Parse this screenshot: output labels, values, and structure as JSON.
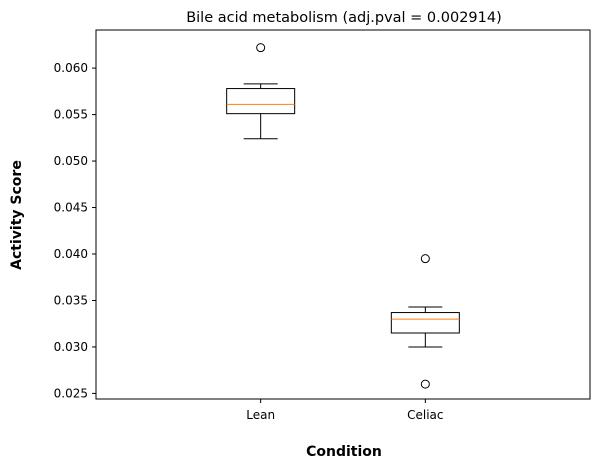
{
  "chart_data": {
    "type": "box",
    "title": "Bile acid metabolism (adj.pval = 0.002914)",
    "xlabel": "Condition",
    "ylabel": "Activity Score",
    "ylim": [
      0.0244,
      0.0641
    ],
    "yticks": [
      0.025,
      0.03,
      0.035,
      0.04,
      0.045,
      0.05,
      0.055,
      0.06
    ],
    "ytick_labels": [
      "0.025",
      "0.030",
      "0.035",
      "0.040",
      "0.045",
      "0.050",
      "0.055",
      "0.060"
    ],
    "categories": [
      "Lean",
      "Celiac"
    ],
    "boxes": [
      {
        "category": "Lean",
        "whisker_low": 0.0524,
        "q1": 0.0551,
        "median": 0.0561,
        "q3": 0.0578,
        "whisker_high": 0.0583,
        "outliers": [
          0.0622
        ]
      },
      {
        "category": "Celiac",
        "whisker_low": 0.03,
        "q1": 0.0315,
        "median": 0.033,
        "q3": 0.0337,
        "whisker_high": 0.0343,
        "outliers": [
          0.0395,
          0.026
        ]
      }
    ],
    "colors": {
      "box": "#000000",
      "median": "#ff7f0e",
      "outlier": "#000000"
    },
    "grid": false,
    "legend": "none"
  }
}
